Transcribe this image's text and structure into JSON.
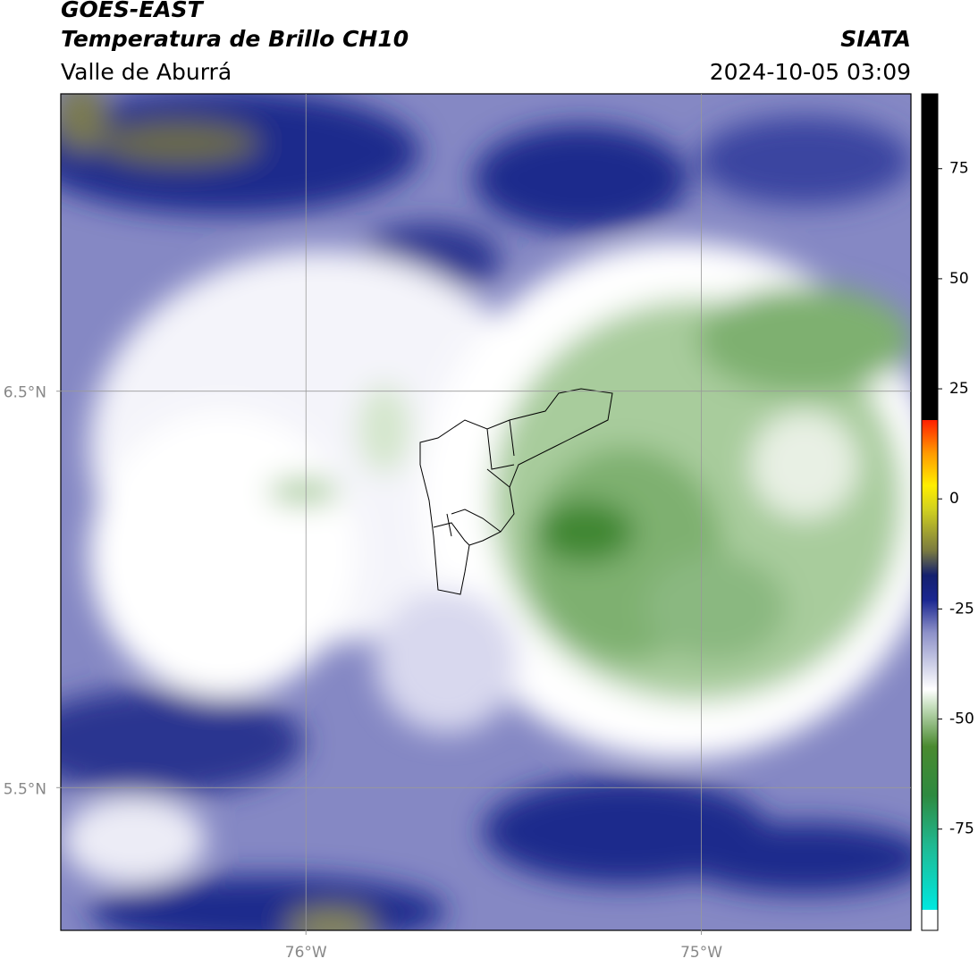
{
  "header": {
    "title": "GOES-EAST",
    "subtitle": "Temperatura de Brillo CH10",
    "source": "SIATA",
    "region": "Valle de Aburrá",
    "datetime": "2024-10-05 03:09"
  },
  "map": {
    "lon_range": [
      -76.62,
      -74.47
    ],
    "lat_range": [
      5.14,
      7.25
    ],
    "lon_ticks": [
      {
        "value": -76,
        "label": "76°W"
      },
      {
        "value": -75,
        "label": "75°W"
      }
    ],
    "lat_ticks": [
      {
        "value": 6.5,
        "label": "6.5°N"
      },
      {
        "value": 5.5,
        "label": "5.5°N"
      }
    ],
    "grid": true
  },
  "colorbar": {
    "range": [
      -98,
      92
    ],
    "ticks": [
      75,
      50,
      25,
      0,
      -25,
      -50,
      -75
    ]
  }
}
